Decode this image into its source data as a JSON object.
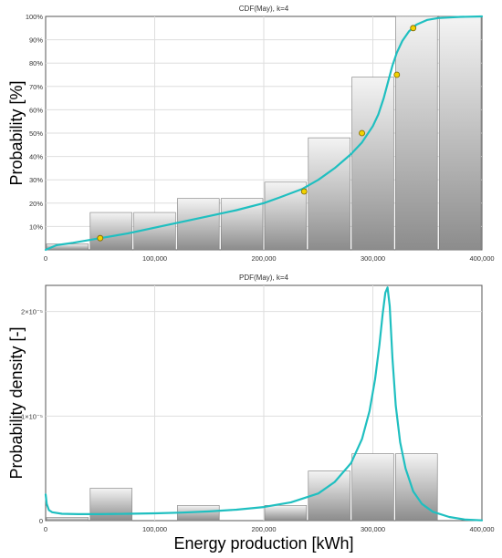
{
  "colors": {
    "curve": "#1fbfc0",
    "bar_light": "#f4f4f4",
    "bar_dark": "#8c8c8c",
    "bar_stroke": "#7a7a7a",
    "point_fill": "#f2d200",
    "point_stroke": "#7a6400",
    "grid": "#dedede",
    "frame": "#555555"
  },
  "chart_data": [
    {
      "type": "bar",
      "title": "CDF(May), k=4",
      "xlabel": "",
      "ylabel": "Probability [%]",
      "xlim": [
        0,
        400000
      ],
      "ylim": [
        0,
        100
      ],
      "x_ticks": [
        {
          "value": 0,
          "label": "0"
        },
        {
          "value": 100000,
          "label": "100,000"
        },
        {
          "value": 200000,
          "label": "200,000"
        },
        {
          "value": 300000,
          "label": "300,000"
        },
        {
          "value": 400000,
          "label": "400,000"
        }
      ],
      "y_ticks": [
        {
          "value": 10,
          "label": "10%"
        },
        {
          "value": 20,
          "label": "20%"
        },
        {
          "value": 30,
          "label": "30%"
        },
        {
          "value": 40,
          "label": "40%"
        },
        {
          "value": 50,
          "label": "50%"
        },
        {
          "value": 60,
          "label": "60%"
        },
        {
          "value": 70,
          "label": "70%"
        },
        {
          "value": 80,
          "label": "80%"
        },
        {
          "value": 90,
          "label": "90%"
        },
        {
          "value": 100,
          "label": "100%"
        }
      ],
      "grid": true,
      "bars": [
        {
          "x0": 0,
          "x1": 40000,
          "value": 2.5
        },
        {
          "x0": 40000,
          "x1": 80000,
          "value": 16
        },
        {
          "x0": 80000,
          "x1": 120000,
          "value": 16
        },
        {
          "x0": 120000,
          "x1": 160000,
          "value": 22
        },
        {
          "x0": 160000,
          "x1": 200000,
          "value": 22
        },
        {
          "x0": 200000,
          "x1": 240000,
          "value": 29
        },
        {
          "x0": 240000,
          "x1": 280000,
          "value": 48
        },
        {
          "x0": 280000,
          "x1": 320000,
          "value": 74
        },
        {
          "x0": 320000,
          "x1": 360000,
          "value": 100
        },
        {
          "x0": 360000,
          "x1": 400000,
          "value": 100
        }
      ],
      "curve": {
        "x": [
          0,
          10000,
          25000,
          50000,
          75000,
          100000,
          125000,
          150000,
          175000,
          200000,
          215000,
          235000,
          250000,
          265000,
          280000,
          290000,
          300000,
          305000,
          310000,
          314000,
          318000,
          322000,
          327000,
          333000,
          340000,
          350000,
          360000,
          380000,
          400000
        ],
        "y": [
          0,
          2,
          3,
          5,
          7,
          9.5,
          12,
          14.5,
          17,
          20,
          22.5,
          26,
          30,
          35,
          41,
          46,
          53,
          58,
          65,
          72,
          79,
          84.5,
          89.5,
          93.5,
          96.5,
          98.5,
          99.3,
          99.8,
          100
        ]
      },
      "points": [
        {
          "x": 50000,
          "y": 5
        },
        {
          "x": 237000,
          "y": 25
        },
        {
          "x": 290000,
          "y": 50
        },
        {
          "x": 322000,
          "y": 75
        },
        {
          "x": 337000,
          "y": 95
        }
      ]
    },
    {
      "type": "bar",
      "title": "PDF(May), k=4",
      "xlabel": "Energy production [kWh]",
      "ylabel": "Probability density [-]",
      "xlim": [
        0,
        400000
      ],
      "ylim": [
        0,
        2.25e-05
      ],
      "x_ticks": [
        {
          "value": 0,
          "label": "0"
        },
        {
          "value": 100000,
          "label": "100,000"
        },
        {
          "value": 200000,
          "label": "200,000"
        },
        {
          "value": 300000,
          "label": "300,000"
        },
        {
          "value": 400000,
          "label": "400,000"
        }
      ],
      "y_ticks": [
        {
          "value": 0,
          "label": "0"
        },
        {
          "value": 1e-05,
          "label": "1×10⁻⁵"
        },
        {
          "value": 2e-05,
          "label": "2×10⁻⁵"
        }
      ],
      "grid": true,
      "bars": [
        {
          "x0": 0,
          "x1": 40000,
          "value": 3e-07
        },
        {
          "x0": 40000,
          "x1": 80000,
          "value": 3.1e-06
        },
        {
          "x0": 120000,
          "x1": 160000,
          "value": 1.45e-06
        },
        {
          "x0": 200000,
          "x1": 240000,
          "value": 1.45e-06
        },
        {
          "x0": 240000,
          "x1": 280000,
          "value": 4.75e-06
        },
        {
          "x0": 280000,
          "x1": 320000,
          "value": 6.4e-06
        },
        {
          "x0": 320000,
          "x1": 360000,
          "value": 6.4e-06
        }
      ],
      "curve": {
        "x": [
          0,
          1000,
          3000,
          6000,
          15000,
          30000,
          50000,
          75000,
          100000,
          125000,
          150000,
          175000,
          200000,
          225000,
          250000,
          265000,
          280000,
          290000,
          297000,
          302000,
          306000,
          309000,
          311500,
          313500,
          315500,
          318000,
          321000,
          325000,
          330000,
          337000,
          345000,
          355000,
          370000,
          385000,
          400000
        ],
        "y": [
          2.5e-06,
          1.6e-06,
          1e-06,
          8e-07,
          6.5e-07,
          6.2e-07,
          6.2e-07,
          6.5e-07,
          7e-07,
          7.7e-07,
          8.8e-07,
          1.05e-06,
          1.3e-06,
          1.75e-06,
          2.6e-06,
          3.7e-06,
          5.5e-06,
          7.8e-06,
          1.05e-05,
          1.35e-05,
          1.68e-05,
          1.98e-05,
          2.18e-05,
          2.23e-05,
          2.05e-05,
          1.55e-05,
          1.1e-05,
          7.5e-06,
          5e-06,
          2.8e-06,
          1.6e-06,
          8.5e-07,
          3.5e-07,
          1e-07,
          3e-08
        ]
      }
    }
  ]
}
